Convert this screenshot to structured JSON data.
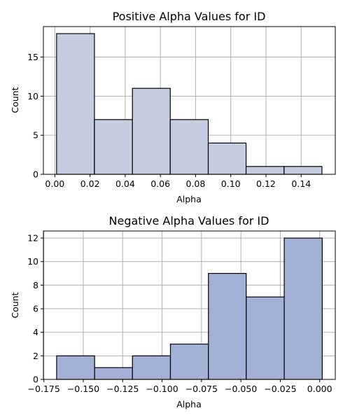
{
  "chart_data": [
    {
      "type": "bar",
      "title": "Positive Alpha Values for ID",
      "xlabel": "Alpha",
      "ylabel": "Count",
      "bin_edges": [
        0.001,
        0.0225,
        0.0441,
        0.0656,
        0.0872,
        0.1087,
        0.1303,
        0.1518
      ],
      "values": [
        18,
        7,
        11,
        7,
        4,
        1,
        1
      ],
      "xlim": [
        -0.0065,
        0.1594
      ],
      "ylim": [
        0,
        18.9
      ],
      "xticks": [
        0.0,
        0.02,
        0.04,
        0.06,
        0.08,
        0.1,
        0.12,
        0.14
      ],
      "xtick_labels": [
        "0.00",
        "0.02",
        "0.04",
        "0.06",
        "0.08",
        "0.10",
        "0.12",
        "0.14"
      ],
      "yticks": [
        0,
        5,
        10,
        15
      ],
      "ytick_labels": [
        "0",
        "5",
        "10",
        "15"
      ],
      "grid": true,
      "bar_color": "#c5cee0"
    },
    {
      "type": "bar",
      "title": "Negative Alpha Values for ID",
      "xlabel": "Alpha",
      "ylabel": "Count",
      "bin_edges": [
        -0.1669,
        -0.1428,
        -0.1188,
        -0.0947,
        -0.0706,
        -0.0466,
        -0.0225,
        0.0016
      ],
      "values": [
        2,
        1,
        2,
        3,
        9,
        7,
        12
      ],
      "xlim": [
        -0.1753,
        0.0099
      ],
      "ylim": [
        0,
        12.6
      ],
      "xticks": [
        -0.175,
        -0.15,
        -0.125,
        -0.1,
        -0.075,
        -0.05,
        -0.025,
        0.0
      ],
      "xtick_labels": [
        "−0.175",
        "−0.150",
        "−0.125",
        "−0.100",
        "−0.075",
        "−0.050",
        "−0.025",
        "0.000"
      ],
      "yticks": [
        0,
        2,
        4,
        6,
        8,
        10,
        12
      ],
      "ytick_labels": [
        "0",
        "2",
        "4",
        "6",
        "8",
        "10",
        "12"
      ],
      "grid": true,
      "bar_color": "#a4b1d6"
    }
  ]
}
